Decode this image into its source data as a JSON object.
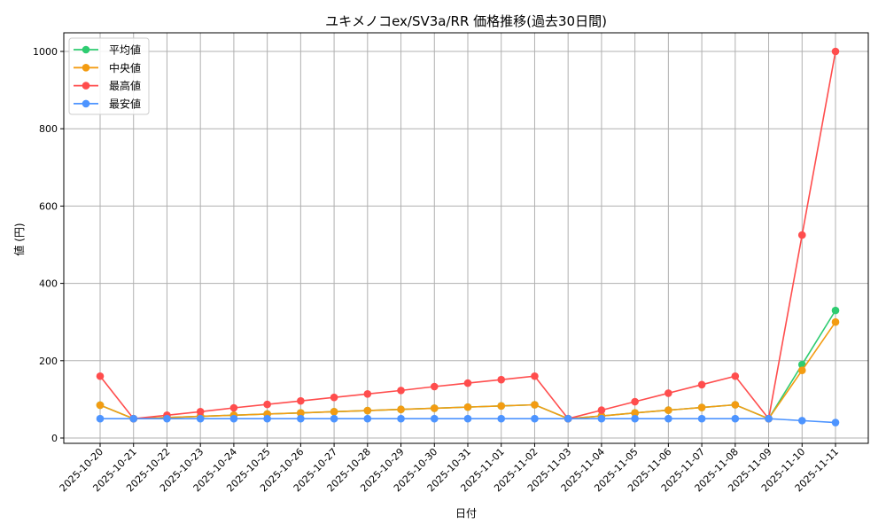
{
  "chart_data": {
    "type": "line",
    "title": "ユキメノコex/SV3a/RR 価格推移(過去30日間)",
    "xlabel": "日付",
    "ylabel": "値 (円)",
    "ylim": [
      0,
      1050
    ],
    "yticks": [
      0,
      200,
      400,
      600,
      800,
      1000
    ],
    "grid": true,
    "legend_position": "top-left",
    "x": [
      "2025-10-20",
      "2025-10-21",
      "2025-10-22",
      "2025-10-23",
      "2025-10-24",
      "2025-10-25",
      "2025-10-26",
      "2025-10-27",
      "2025-10-28",
      "2025-10-29",
      "2025-10-30",
      "2025-10-31",
      "2025-11-01",
      "2025-11-02",
      "2025-11-03",
      "2025-11-04",
      "2025-11-05",
      "2025-11-06",
      "2025-11-07",
      "2025-11-08",
      "2025-11-09",
      "2025-11-10",
      "2025-11-11"
    ],
    "series": [
      {
        "name": "平均値",
        "color": "#2ecc71",
        "values": [
          85,
          50,
          53,
          56,
          59,
          62,
          65,
          68,
          71,
          74,
          77,
          80,
          83,
          86,
          50,
          57,
          65,
          72,
          79,
          86,
          50,
          190,
          330
        ]
      },
      {
        "name": "中央値",
        "color": "#f39c12",
        "values": [
          85,
          50,
          53,
          56,
          59,
          62,
          65,
          68,
          71,
          74,
          77,
          80,
          83,
          86,
          50,
          57,
          65,
          72,
          79,
          86,
          50,
          175,
          300
        ]
      },
      {
        "name": "最高値",
        "color": "#ff4d4d",
        "values": [
          160,
          50,
          59,
          68,
          78,
          87,
          96,
          105,
          114,
          123,
          133,
          142,
          151,
          160,
          50,
          72,
          94,
          116,
          138,
          160,
          50,
          525,
          1000
        ]
      },
      {
        "name": "最安値",
        "color": "#4d94ff",
        "values": [
          50,
          50,
          50,
          50,
          50,
          50,
          50,
          50,
          50,
          50,
          50,
          50,
          50,
          50,
          50,
          50,
          50,
          50,
          50,
          50,
          50,
          45,
          40
        ]
      }
    ]
  }
}
